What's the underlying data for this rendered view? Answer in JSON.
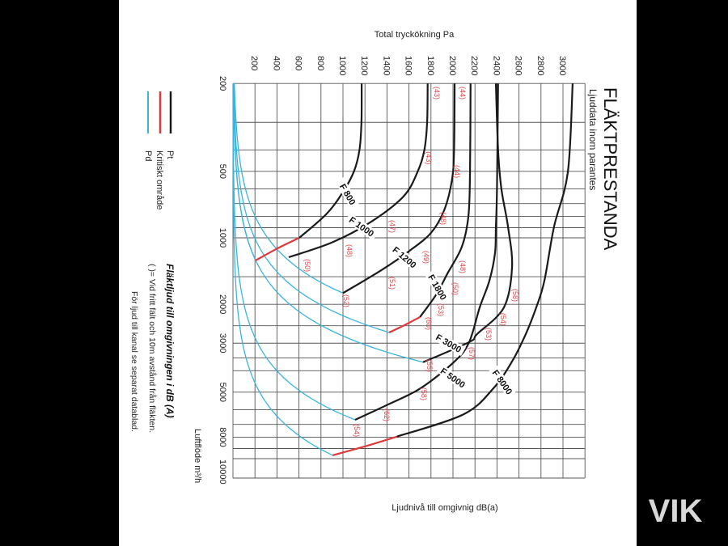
{
  "title": "FLÄKTPRESTANDA",
  "subtitle": "Ljuddata inom parantes",
  "watermark": "VIK",
  "legend": [
    {
      "label": "Pt",
      "color": "#1a1a1a"
    },
    {
      "label": "Kritiskt område",
      "color": "#e0393b"
    },
    {
      "label": "Pd",
      "color": "#3bb3e0"
    }
  ],
  "notes": {
    "heading": "Fläktljud till omgivningen i dB (A)",
    "line1": "(  )=  Vid fritt fält och 10m avstånd från fläkten.",
    "line2": "För ljud till kanal se separat datablad."
  },
  "chart_data": {
    "type": "line",
    "title": "FLÄKTPRESTANDA",
    "xlabel": "Total tryckökning Pa",
    "ylabel": "Luftflöde m³/h",
    "bottom_label": "Ljudnivå till omgivnig dB(a)",
    "xlim": [
      0,
      3200
    ],
    "ylim": [
      200,
      12250
    ],
    "yscale": "log",
    "grid": true,
    "x_ticks": [
      200,
      400,
      600,
      800,
      1000,
      1200,
      1400,
      1600,
      1800,
      2000,
      2200,
      2400,
      2600,
      2800,
      3000
    ],
    "y_ticks": [
      200,
      500,
      1000,
      2000,
      3000,
      5000,
      8000,
      10000
    ],
    "y_grid": [
      200,
      300,
      400,
      500,
      600,
      700,
      800,
      900,
      1000,
      1500,
      2000,
      2500,
      3000,
      3500,
      4000,
      5000,
      6000,
      7000,
      8000,
      9000,
      10000
    ],
    "colors": {
      "pt": "#1a1a1a",
      "critical": "#e0393b",
      "pd": "#3bb3e0"
    },
    "series": [
      {
        "name": "F 800",
        "pt": [
          [
            1170,
            200
          ],
          [
            1168,
            300
          ],
          [
            1150,
            400
          ],
          [
            1100,
            500
          ],
          [
            1000,
            620
          ],
          [
            850,
            780
          ],
          [
            603,
            1000
          ]
        ],
        "critical": [
          [
            603,
            1000
          ],
          [
            400,
            1120
          ],
          [
            206,
            1266
          ]
        ],
        "pd_end": [
          206,
          1266
        ],
        "label_at": [
          1044,
          635
        ]
      },
      {
        "name": "F 1000",
        "pt": [
          [
            1770,
            200
          ],
          [
            1765,
            300
          ],
          [
            1740,
            400
          ],
          [
            1680,
            500
          ],
          [
            1550,
            650
          ],
          [
            1250,
            850
          ],
          [
            900,
            1050
          ],
          [
            507,
            1224
          ]
        ],
        "critical": [],
        "pd_end": null,
        "label_at": [
          1170,
          889
        ]
      },
      {
        "name": "F 1200",
        "pt": [
          [
            2015,
            200
          ],
          [
            2010,
            400
          ],
          [
            1990,
            550
          ],
          [
            1920,
            750
          ],
          [
            1800,
            950
          ],
          [
            1600,
            1150
          ],
          [
            1350,
            1400
          ],
          [
            1000,
            1780
          ]
        ],
        "critical": [],
        "pd_end": [
          1000,
          1780
        ],
        "label_at": [
          1560,
          1224
        ]
      },
      {
        "name": "F 1800",
        "pt": [
          [
            2160,
            200
          ],
          [
            2155,
            500
          ],
          [
            2140,
            800
          ],
          [
            2080,
            1100
          ],
          [
            1950,
            1450
          ],
          [
            1850,
            1800
          ],
          [
            1700,
            2285
          ]
        ],
        "critical": [
          [
            1700,
            2285
          ],
          [
            1550,
            2500
          ],
          [
            1420,
            2685
          ]
        ],
        "pd_end": [
          1420,
          2685
        ],
        "label_at": [
          1830,
          1820
        ]
      },
      {
        "name": "F 3000",
        "pt": [
          [
            2390,
            200
          ],
          [
            2410,
            400
          ],
          [
            2440,
            600
          ],
          [
            2500,
            889
          ],
          [
            2537,
            1355
          ],
          [
            2463,
            2066
          ],
          [
            2220,
            2726
          ],
          [
            2147,
            2967
          ],
          [
            1728,
            3660
          ]
        ],
        "critical": [],
        "pd_end": [
          1728,
          3660
        ],
        "label_at": [
          2020,
          2950
        ]
      },
      {
        "name": "F 5000",
        "pt": [
          [
            2410,
            200
          ],
          [
            2400,
            600
          ],
          [
            2390,
            900
          ],
          [
            2382,
            1174
          ],
          [
            2331,
            1564
          ],
          [
            2243,
            2066
          ],
          [
            2147,
            2967
          ],
          [
            2015,
            3630
          ],
          [
            1706,
            4800
          ],
          [
            1412,
            5680
          ],
          [
            1110,
            6670
          ]
        ],
        "critical": [],
        "pd_end": [
          1110,
          6670
        ],
        "label_at": [
          2000,
          4300
        ]
      },
      {
        "name": "F 8000",
        "pt": [
          [
            3088,
            200
          ],
          [
            3044,
            505
          ],
          [
            2919,
            889
          ],
          [
            2831,
            1564
          ],
          [
            2757,
            2066
          ],
          [
            2662,
            2726
          ],
          [
            2537,
            3630
          ],
          [
            2368,
            4800
          ],
          [
            2096,
            6300
          ],
          [
            1490,
            7950
          ]
        ],
        "critical": [
          [
            1490,
            7950
          ],
          [
            1200,
            8800
          ],
          [
            905,
            9660
          ]
        ],
        "pd_end": [
          905,
          9660
        ],
        "label_at": [
          2450,
          4500
        ]
      }
    ],
    "sound_labels": [
      {
        "text": "(43)",
        "at": [
          1853,
          221
        ]
      },
      {
        "text": "(43)",
        "at": [
          1780,
          435
        ]
      },
      {
        "text": "(44)",
        "at": [
          2088,
          221
        ]
      },
      {
        "text": "(44)",
        "at": [
          2037,
          501
        ]
      },
      {
        "text": "(47)",
        "at": [
          1450,
          889
        ]
      },
      {
        "text": "(48)",
        "at": [
          1060,
          1144
        ]
      },
      {
        "text": "(48)",
        "at": [
          1910,
          817
        ]
      },
      {
        "text": "(49)",
        "at": [
          1757,
          1224
        ]
      },
      {
        "text": "(50)",
        "at": [
          676,
          1333
        ]
      },
      {
        "text": "(51)",
        "at": [
          1450,
          1603
        ]
      },
      {
        "text": "(52)",
        "at": [
          1030,
          1931
        ]
      },
      {
        "text": "(48)",
        "at": [
          2088,
          1355
        ]
      },
      {
        "text": "(50)",
        "at": [
          2022,
          1702
        ]
      },
      {
        "text": "(53)",
        "at": [
          1890,
          2118
        ]
      },
      {
        "text": "(60)",
        "at": [
          1780,
          2444
        ]
      },
      {
        "text": "(58)",
        "at": [
          2566,
          1820
        ]
      },
      {
        "text": "(54)",
        "at": [
          2456,
          2342
        ]
      },
      {
        "text": "(53)",
        "at": [
          2324,
          2727
        ]
      },
      {
        "text": "(57)",
        "at": [
          2169,
          3340
        ]
      },
      {
        "text": "(55)",
        "at": [
          1787,
          3790
        ]
      },
      {
        "text": "(58)",
        "at": [
          1735,
          5090
        ]
      },
      {
        "text": "(62)",
        "at": [
          1397,
          6340
        ]
      },
      {
        "text": "(54)",
        "at": [
          1125,
          7450
        ]
      }
    ]
  }
}
